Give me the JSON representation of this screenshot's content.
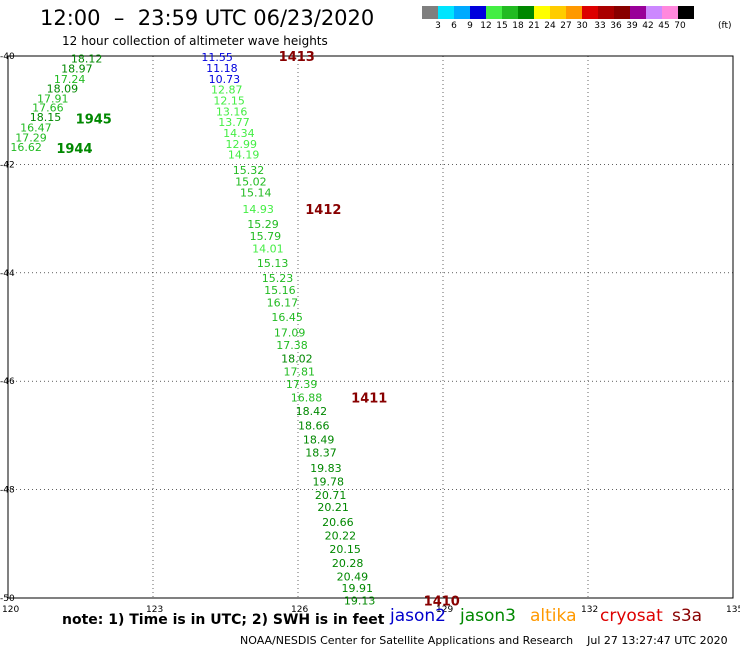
{
  "header": {
    "title": "12:00  –  23:59 UTC 06/23/2020",
    "subtitle": "12 hour collection of altimeter wave heights"
  },
  "colorbar": {
    "colors": [
      "#7f7f7f",
      "#00e5ff",
      "#00aaff",
      "#0000dd",
      "#44ee44",
      "#22bb22",
      "#008800",
      "#ffff00",
      "#ffcc00",
      "#ff9900",
      "#dd0000",
      "#aa0000",
      "#880000",
      "#990099",
      "#cc88ff",
      "#ff88dd",
      "#000000"
    ],
    "labels": [
      "3",
      "6",
      "9",
      "12",
      "15",
      "18",
      "21",
      "24",
      "27",
      "30",
      "33",
      "36",
      "39",
      "42",
      "45",
      "70"
    ],
    "unit": "(ft)"
  },
  "chart_data": {
    "type": "scatter",
    "xlim": [
      120,
      135
    ],
    "ylim": [
      -50,
      -40
    ],
    "xticks": [
      120,
      123,
      126,
      129,
      132,
      135
    ],
    "yticks": [
      -40,
      -42,
      -44,
      -46,
      -48,
      -50
    ],
    "grid": true,
    "point_labels": "significant wave height (ft)",
    "tracks": [
      {
        "mission": "jason3",
        "points": [
          {
            "lon": 121.3,
            "lat": -40.05,
            "v": 18.12
          },
          {
            "lon": 121.1,
            "lat": -40.23,
            "v": 18.97
          },
          {
            "lon": 120.95,
            "lat": -40.42,
            "v": 17.24
          },
          {
            "lon": 120.8,
            "lat": -40.6,
            "v": 18.09
          },
          {
            "lon": 120.6,
            "lat": -40.78,
            "v": 17.91
          },
          {
            "lon": 120.5,
            "lat": -40.95,
            "v": 17.66
          },
          {
            "lon": 120.45,
            "lat": -41.13,
            "v": 18.15
          },
          {
            "lon": 120.25,
            "lat": -41.32,
            "v": 16.47
          },
          {
            "lon": 120.15,
            "lat": -41.5,
            "v": 17.29
          },
          {
            "lon": 120.05,
            "lat": -41.68,
            "v": 16.62
          }
        ],
        "time_labels": [
          {
            "text": "1945",
            "lon": 121.4,
            "lat": -41.15
          },
          {
            "text": "1944",
            "lon": 121.0,
            "lat": -41.7
          }
        ]
      },
      {
        "mission": "jason2",
        "points": [
          {
            "lon": 124.0,
            "lat": -40.02,
            "v": 11.55
          },
          {
            "lon": 124.1,
            "lat": -40.22,
            "v": 11.18
          },
          {
            "lon": 124.15,
            "lat": -40.42,
            "v": 10.73
          },
          {
            "lon": 124.2,
            "lat": -40.62,
            "v": 12.87
          },
          {
            "lon": 124.25,
            "lat": -40.82,
            "v": 12.15
          },
          {
            "lon": 124.3,
            "lat": -41.02,
            "v": 13.16
          },
          {
            "lon": 124.35,
            "lat": -41.22,
            "v": 13.77
          },
          {
            "lon": 124.45,
            "lat": -41.42,
            "v": 14.34
          },
          {
            "lon": 124.5,
            "lat": -41.62,
            "v": 12.99
          },
          {
            "lon": 124.55,
            "lat": -41.82,
            "v": 14.19
          },
          {
            "lon": 124.65,
            "lat": -42.1,
            "v": 15.32
          },
          {
            "lon": 124.7,
            "lat": -42.32,
            "v": 15.02
          },
          {
            "lon": 124.8,
            "lat": -42.52,
            "v": 15.14
          },
          {
            "lon": 124.85,
            "lat": -42.82,
            "v": 14.93
          },
          {
            "lon": 124.95,
            "lat": -43.1,
            "v": 15.29
          },
          {
            "lon": 125.0,
            "lat": -43.32,
            "v": 15.79
          },
          {
            "lon": 125.05,
            "lat": -43.55,
            "v": 14.01
          },
          {
            "lon": 125.15,
            "lat": -43.82,
            "v": 15.13
          },
          {
            "lon": 125.25,
            "lat": -44.1,
            "v": 15.23
          },
          {
            "lon": 125.3,
            "lat": -44.32,
            "v": 15.16
          },
          {
            "lon": 125.35,
            "lat": -44.55,
            "v": 16.17
          },
          {
            "lon": 125.45,
            "lat": -44.82,
            "v": 16.45
          },
          {
            "lon": 125.5,
            "lat": -45.1,
            "v": 17.09
          },
          {
            "lon": 125.55,
            "lat": -45.33,
            "v": 17.38
          },
          {
            "lon": 125.65,
            "lat": -45.58,
            "v": 18.02
          },
          {
            "lon": 125.7,
            "lat": -45.82,
            "v": 17.81
          },
          {
            "lon": 125.75,
            "lat": -46.05,
            "v": 17.39
          },
          {
            "lon": 125.85,
            "lat": -46.3,
            "v": 16.88
          },
          {
            "lon": 125.95,
            "lat": -46.55,
            "v": 18.42
          },
          {
            "lon": 126.0,
            "lat": -46.82,
            "v": 18.66
          },
          {
            "lon": 126.1,
            "lat": -47.08,
            "v": 18.49
          },
          {
            "lon": 126.15,
            "lat": -47.32,
            "v": 18.37
          },
          {
            "lon": 126.25,
            "lat": -47.6,
            "v": 19.83
          },
          {
            "lon": 126.3,
            "lat": -47.85,
            "v": 19.78
          },
          {
            "lon": 126.35,
            "lat": -48.1,
            "v": 20.71
          },
          {
            "lon": 126.4,
            "lat": -48.32,
            "v": 20.21
          },
          {
            "lon": 126.5,
            "lat": -48.6,
            "v": 20.66
          },
          {
            "lon": 126.55,
            "lat": -48.85,
            "v": 20.22
          },
          {
            "lon": 126.65,
            "lat": -49.1,
            "v": 20.15
          },
          {
            "lon": 126.7,
            "lat": -49.35,
            "v": 20.28
          },
          {
            "lon": 126.8,
            "lat": -49.6,
            "v": 20.49
          },
          {
            "lon": 126.9,
            "lat": -49.82,
            "v": 19.91
          },
          {
            "lon": 126.95,
            "lat": -50.05,
            "v": 19.13
          }
        ],
        "time_labels": [
          {
            "text": "1413",
            "lon": 125.6,
            "lat": -40.0
          },
          {
            "text": "1412",
            "lon": 126.15,
            "lat": -42.82
          },
          {
            "text": "1411",
            "lon": 127.1,
            "lat": -46.3
          },
          {
            "text": "1410",
            "lon": 128.6,
            "lat": -50.05
          }
        ]
      }
    ]
  },
  "footer": {
    "note": "note:  1) Time is in UTC;  2) SWH is in feet",
    "missions": [
      {
        "name": "jason2",
        "color": "#0000cc"
      },
      {
        "name": "jason3",
        "color": "#008800"
      },
      {
        "name": "altika",
        "color": "#ff9900"
      },
      {
        "name": "cryosat",
        "color": "#dd0000"
      },
      {
        "name": "s3a",
        "color": "#880000"
      }
    ],
    "credit": "NOAA/NESDIS Center for Satellite Applications and Research    Jul 27 13:27:47 UTC 2020"
  }
}
